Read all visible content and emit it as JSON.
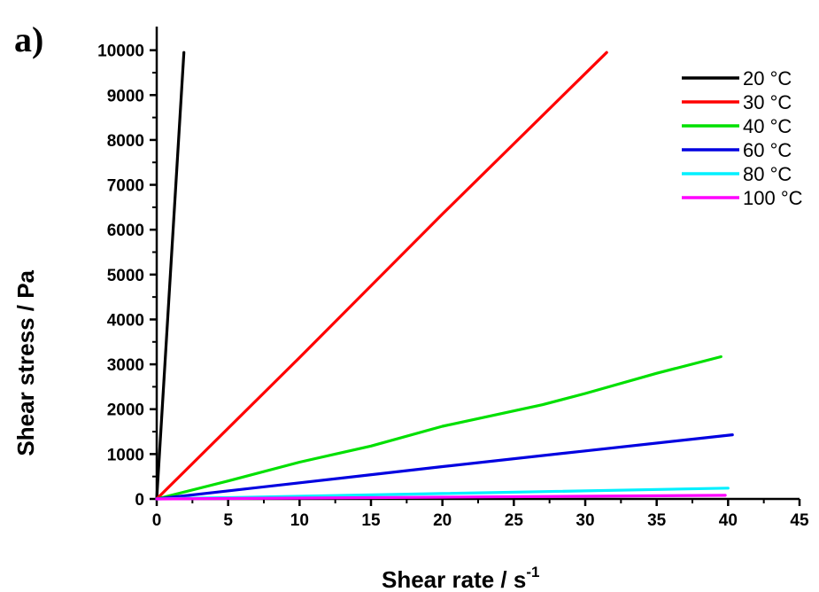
{
  "chart_data": {
    "type": "line",
    "panel_label": "a)",
    "xlabel": "Shear rate / s",
    "xlabel_superscript": "-1",
    "ylabel": "Shear stress / Pa",
    "xlim": [
      0,
      45
    ],
    "ylim": [
      0,
      10000
    ],
    "xticks": [
      "0",
      "5",
      "10",
      "15",
      "20",
      "25",
      "30",
      "35",
      "40",
      "45"
    ],
    "yticks": [
      "0",
      "1000",
      "2000",
      "3000",
      "4000",
      "5000",
      "6000",
      "7000",
      "8000",
      "9000",
      "10000"
    ],
    "grid": false,
    "legend_position": "top-right",
    "series": [
      {
        "name": "20 °C",
        "color": "#000000",
        "x": [
          0,
          1.9
        ],
        "y": [
          0,
          9950
        ]
      },
      {
        "name": "30 °C",
        "color": "#ff0000",
        "x": [
          0,
          10,
          20,
          31.5
        ],
        "y": [
          0,
          3150,
          6350,
          9950
        ]
      },
      {
        "name": "40 °C",
        "color": "#00e000",
        "x": [
          0,
          5,
          10,
          15,
          20,
          27,
          30,
          35,
          39.5
        ],
        "y": [
          0,
          400,
          820,
          1180,
          1620,
          2100,
          2350,
          2800,
          3170
        ]
      },
      {
        "name": "60 °C",
        "color": "#0000e0",
        "x": [
          0,
          10,
          20,
          30,
          40.3
        ],
        "y": [
          0,
          360,
          720,
          1070,
          1430
        ]
      },
      {
        "name": "80 °C",
        "color": "#00f0ff",
        "x": [
          0,
          20,
          40
        ],
        "y": [
          0,
          120,
          240
        ]
      },
      {
        "name": "100 °C",
        "color": "#ff00ff",
        "x": [
          0,
          20,
          39.8
        ],
        "y": [
          0,
          40,
          80
        ]
      }
    ]
  }
}
